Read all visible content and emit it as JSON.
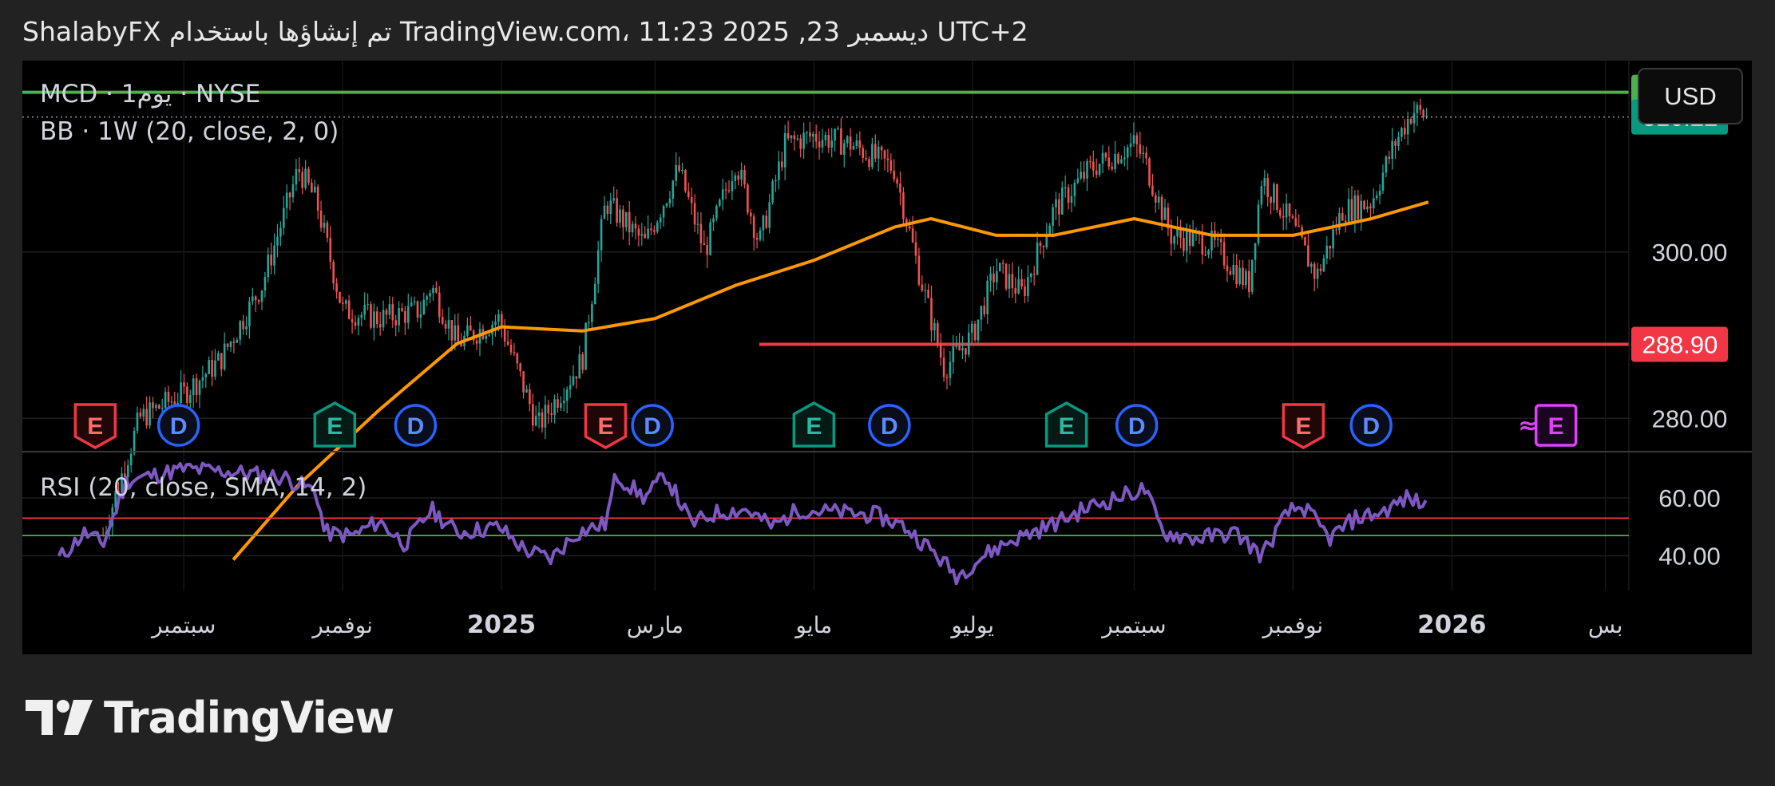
{
  "header": {
    "text": "ShalabyFX تم إنشاؤها باستخدام TradingView.com، 11:23 2025 ,23 ديسمبر UTC+2"
  },
  "legend": {
    "symbol_line": "MCD · يوم1 · NYSE",
    "bb_line": "BB · 1W (20, close, 2, 0)",
    "rsi_line": "RSI (20, close, SMA, 14, 2)"
  },
  "currency_button": "USD",
  "brand": {
    "name": "TradingView"
  },
  "colors": {
    "background": "#000000",
    "frame": "#222222",
    "up_candle": "#26a69a",
    "down_candle": "#ef5350",
    "bb_basis": "#ff9800",
    "resistance_line": "#4caf50",
    "support_line": "#f23645",
    "rsi_line": "#7e57c2",
    "last_price_badge": "#089981",
    "earnings_red": "#f23645",
    "earnings_green": "#089981",
    "dividend_blue": "#2962ff",
    "future_earnings": "#e040fb"
  },
  "chart_data": {
    "type": "candlestick",
    "symbol": "MCD",
    "exchange": "NYSE",
    "interval": "يوم1",
    "price_axis": {
      "ticks": [
        300.0,
        280.0
      ],
      "tick_labels": [
        "300.00",
        "280.00"
      ],
      "range": [
        276,
        323
      ]
    },
    "price_badges": [
      {
        "label": "319.20",
        "value": 319.2,
        "color": "#4caf50"
      },
      {
        "label": "316.22",
        "value": 316.22,
        "color": "#089981"
      },
      {
        "label": "288.90",
        "value": 288.9,
        "color": "#f23645"
      }
    ],
    "horizontal_lines": [
      {
        "name": "resistance",
        "value": 319.2,
        "color": "#4caf50"
      },
      {
        "name": "support",
        "value": 288.9,
        "color": "#f23645",
        "from": "2025-04"
      }
    ],
    "last_close": 316.22,
    "x_axis": {
      "labels": [
        "سبتمبر",
        "نوفمبر",
        "2025",
        "مارس",
        "مايو",
        "يوليو",
        "سبتمبر",
        "نوفمبر",
        "2026",
        "بس"
      ],
      "bold_labels": [
        "2025",
        "2026"
      ]
    },
    "close_path": [
      [
        "2024-08-01",
        266
      ],
      [
        "2024-08-15",
        280
      ],
      [
        "2024-09-01",
        283
      ],
      [
        "2024-09-15",
        287
      ],
      [
        "2024-10-01",
        296
      ],
      [
        "2024-10-15",
        310
      ],
      [
        "2024-10-22",
        306
      ],
      [
        "2024-11-01",
        293
      ],
      [
        "2024-11-15",
        292
      ],
      [
        "2024-12-01",
        293
      ],
      [
        "2024-12-05",
        296
      ],
      [
        "2024-12-15",
        289
      ],
      [
        "2024-12-31",
        292
      ],
      [
        "2025-01-15",
        279
      ],
      [
        "2025-02-01",
        287
      ],
      [
        "2025-02-10",
        306
      ],
      [
        "2025-02-25",
        301
      ],
      [
        "2025-03-10",
        310
      ],
      [
        "2025-03-20",
        300
      ],
      [
        "2025-04-01",
        311
      ],
      [
        "2025-04-10",
        301
      ],
      [
        "2025-04-20",
        313
      ],
      [
        "2025-05-01",
        314
      ],
      [
        "2025-05-15",
        313
      ],
      [
        "2025-06-01",
        310
      ],
      [
        "2025-06-10",
        298
      ],
      [
        "2025-06-20",
        286
      ],
      [
        "2025-07-01",
        290
      ],
      [
        "2025-07-10",
        298
      ],
      [
        "2025-07-20",
        295
      ],
      [
        "2025-08-01",
        305
      ],
      [
        "2025-08-15",
        310
      ],
      [
        "2025-09-01",
        313
      ],
      [
        "2025-09-05",
        311
      ],
      [
        "2025-09-15",
        302
      ],
      [
        "2025-10-01",
        301
      ],
      [
        "2025-10-15",
        296
      ],
      [
        "2025-10-20",
        309
      ],
      [
        "2025-11-01",
        303
      ],
      [
        "2025-11-10",
        297
      ],
      [
        "2025-11-20",
        305
      ],
      [
        "2025-12-01",
        306
      ],
      [
        "2025-12-10",
        313
      ],
      [
        "2025-12-17",
        317
      ],
      [
        "2025-12-23",
        316.22
      ]
    ],
    "bb_basis_path": [
      [
        "2024-09-20",
        263
      ],
      [
        "2024-10-15",
        272
      ],
      [
        "2024-11-15",
        281
      ],
      [
        "2024-12-15",
        289
      ],
      [
        "2025-01-01",
        291
      ],
      [
        "2025-02-01",
        290.5
      ],
      [
        "2025-03-01",
        292
      ],
      [
        "2025-04-01",
        296
      ],
      [
        "2025-05-01",
        299
      ],
      [
        "2025-06-01",
        303
      ],
      [
        "2025-06-15",
        304
      ],
      [
        "2025-07-10",
        302
      ],
      [
        "2025-08-01",
        302
      ],
      [
        "2025-09-01",
        304
      ],
      [
        "2025-10-01",
        302
      ],
      [
        "2025-11-01",
        302
      ],
      [
        "2025-12-01",
        304
      ],
      [
        "2025-12-23",
        306
      ]
    ],
    "events": [
      {
        "type": "E",
        "status": "miss",
        "date": "2024-07-29"
      },
      {
        "type": "D",
        "date": "2024-08-30"
      },
      {
        "type": "E",
        "status": "beat",
        "date": "2024-10-29"
      },
      {
        "type": "D",
        "date": "2024-11-29"
      },
      {
        "type": "E",
        "status": "miss",
        "date": "2025-02-10"
      },
      {
        "type": "D",
        "date": "2025-02-28"
      },
      {
        "type": "E",
        "status": "beat",
        "date": "2025-05-01"
      },
      {
        "type": "D",
        "date": "2025-05-30"
      },
      {
        "type": "E",
        "status": "beat",
        "date": "2025-08-06"
      },
      {
        "type": "D",
        "date": "2025-09-02"
      },
      {
        "type": "E",
        "status": "miss",
        "date": "2025-11-05"
      },
      {
        "type": "D",
        "date": "2025-12-01"
      },
      {
        "type": "E",
        "status": "upcoming",
        "date": "2026-02-10"
      }
    ],
    "rsi": {
      "name": "RSI",
      "ticks": [
        60.0,
        40.0
      ],
      "tick_labels": [
        "60.00",
        "40.00"
      ],
      "range": [
        28,
        76
      ],
      "bands": [
        {
          "value": 53,
          "color": "#f23645"
        },
        {
          "value": 47,
          "color": "#4caf50"
        }
      ],
      "path": [
        [
          "2024-07-15",
          39
        ],
        [
          "2024-07-25",
          48
        ],
        [
          "2024-08-01",
          44
        ],
        [
          "2024-08-10",
          66
        ],
        [
          "2024-09-01",
          70
        ],
        [
          "2024-09-20",
          69
        ],
        [
          "2024-10-10",
          67
        ],
        [
          "2024-10-22",
          62
        ],
        [
          "2024-10-25",
          48
        ],
        [
          "2024-11-05",
          47
        ],
        [
          "2024-11-15",
          52
        ],
        [
          "2024-11-25",
          44
        ],
        [
          "2024-12-05",
          56
        ],
        [
          "2024-12-15",
          48
        ],
        [
          "2024-12-31",
          50
        ],
        [
          "2025-01-10",
          42
        ],
        [
          "2025-01-20",
          39
        ],
        [
          "2025-01-30",
          48
        ],
        [
          "2025-02-10",
          51
        ],
        [
          "2025-02-14",
          68
        ],
        [
          "2025-02-25",
          60
        ],
        [
          "2025-03-05",
          68
        ],
        [
          "2025-03-15",
          51
        ],
        [
          "2025-03-25",
          55
        ],
        [
          "2025-04-05",
          56
        ],
        [
          "2025-04-15",
          50
        ],
        [
          "2025-04-25",
          56
        ],
        [
          "2025-05-10",
          55
        ],
        [
          "2025-05-25",
          54
        ],
        [
          "2025-06-05",
          50
        ],
        [
          "2025-06-15",
          42
        ],
        [
          "2025-06-25",
          33
        ],
        [
          "2025-07-05",
          40
        ],
        [
          "2025-07-15",
          45
        ],
        [
          "2025-08-01",
          51
        ],
        [
          "2025-08-15",
          57
        ],
        [
          "2025-09-01",
          62
        ],
        [
          "2025-09-05",
          63
        ],
        [
          "2025-09-12",
          48
        ],
        [
          "2025-09-25",
          46
        ],
        [
          "2025-10-10",
          48
        ],
        [
          "2025-10-20",
          40
        ],
        [
          "2025-10-30",
          55
        ],
        [
          "2025-11-05",
          57
        ],
        [
          "2025-11-15",
          46
        ],
        [
          "2025-11-25",
          53
        ],
        [
          "2025-12-05",
          55
        ],
        [
          "2025-12-15",
          60
        ],
        [
          "2025-12-23",
          57
        ]
      ]
    }
  }
}
